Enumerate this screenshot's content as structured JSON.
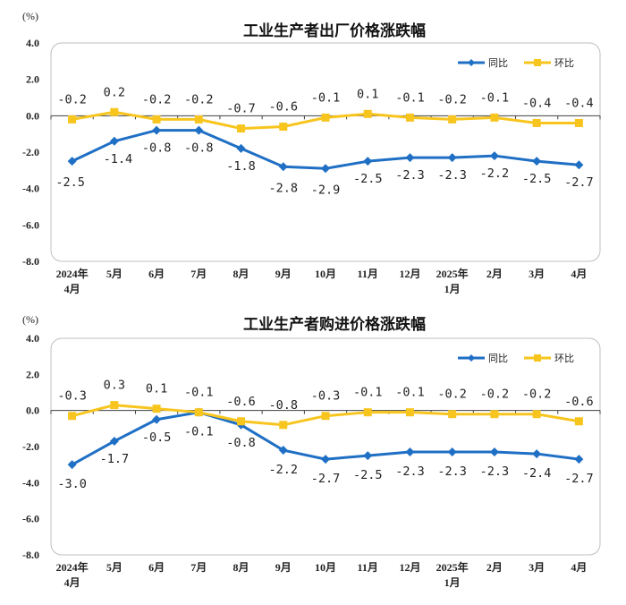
{
  "colors": {
    "yoy": "#1f6fc5",
    "mom": "#f7c51e",
    "plot_border": "#bfbfbf",
    "axis": "#404040"
  },
  "chart_data": [
    {
      "type": "line",
      "title": "工业生产者出厂价格涨跌幅",
      "unit": "(%)",
      "categories": [
        [
          "2024年",
          "4月"
        ],
        [
          "5月"
        ],
        [
          "6月"
        ],
        [
          "7月"
        ],
        [
          "8月"
        ],
        [
          "9月"
        ],
        [
          "10月"
        ],
        [
          "11月"
        ],
        [
          "12月"
        ],
        [
          "2025年",
          "1月"
        ],
        [
          "2月"
        ],
        [
          "3月"
        ],
        [
          "4月"
        ]
      ],
      "yticks": [
        "4.0",
        "2.0",
        "0.0",
        "-2.0",
        "-4.0",
        "-6.0",
        "-8.0"
      ],
      "ylim": [
        -8,
        4
      ],
      "legend": [
        "同比",
        "环比"
      ],
      "series": [
        {
          "name": "同比",
          "values": [
            -2.5,
            -1.4,
            -0.8,
            -0.8,
            -1.8,
            -2.8,
            -2.9,
            -2.5,
            -2.3,
            -2.3,
            -2.2,
            -2.5,
            -2.7
          ],
          "labels": [
            "-2.5",
            "-1.4",
            "-0.8",
            "-0.8",
            "-1.8",
            "-2.8",
            "-2.9",
            "-2.5",
            "-2.3",
            "-2.3",
            "-2.2",
            "-2.5",
            "-2.7"
          ]
        },
        {
          "name": "环比",
          "values": [
            -0.2,
            0.2,
            -0.2,
            -0.2,
            -0.7,
            -0.6,
            -0.1,
            0.1,
            -0.1,
            -0.2,
            -0.1,
            -0.4,
            -0.4
          ],
          "labels": [
            "-0.2",
            "0.2",
            "-0.2",
            "-0.2",
            "-0.7",
            "-0.6",
            "-0.1",
            "0.1",
            "-0.1",
            "-0.2",
            "-0.1",
            "-0.4",
            "-0.4"
          ]
        }
      ]
    },
    {
      "type": "line",
      "title": "工业生产者购进价格涨跌幅",
      "unit": "(%)",
      "categories": [
        [
          "2024年",
          "4月"
        ],
        [
          "5月"
        ],
        [
          "6月"
        ],
        [
          "7月"
        ],
        [
          "8月"
        ],
        [
          "9月"
        ],
        [
          "10月"
        ],
        [
          "11月"
        ],
        [
          "12月"
        ],
        [
          "2025年",
          "1月"
        ],
        [
          "2月"
        ],
        [
          "3月"
        ],
        [
          "4月"
        ]
      ],
      "yticks": [
        "4.0",
        "2.0",
        "0.0",
        "-2.0",
        "-4.0",
        "-6.0",
        "-8.0"
      ],
      "ylim": [
        -8,
        4
      ],
      "legend": [
        "同比",
        "环比"
      ],
      "series": [
        {
          "name": "同比",
          "values": [
            -3.0,
            -1.7,
            -0.5,
            -0.1,
            -0.8,
            -2.2,
            -2.7,
            -2.5,
            -2.3,
            -2.3,
            -2.3,
            -2.4,
            -2.7
          ],
          "labels": [
            "-3.0",
            "-1.7",
            "-0.5",
            "-0.1",
            "-0.8",
            "-2.2",
            "-2.7",
            "-2.5",
            "-2.3",
            "-2.3",
            "-2.3",
            "-2.4",
            "-2.7"
          ]
        },
        {
          "name": "环比",
          "values": [
            -0.3,
            0.3,
            0.1,
            -0.1,
            -0.6,
            -0.8,
            -0.3,
            -0.1,
            -0.1,
            -0.2,
            -0.2,
            -0.2,
            -0.6
          ],
          "labels": [
            "-0.3",
            "0.3",
            "0.1",
            "-0.1",
            "-0.6",
            "-0.8",
            "-0.3",
            "-0.1",
            "-0.1",
            "-0.2",
            "-0.2",
            "-0.2",
            "-0.6"
          ]
        }
      ]
    }
  ]
}
